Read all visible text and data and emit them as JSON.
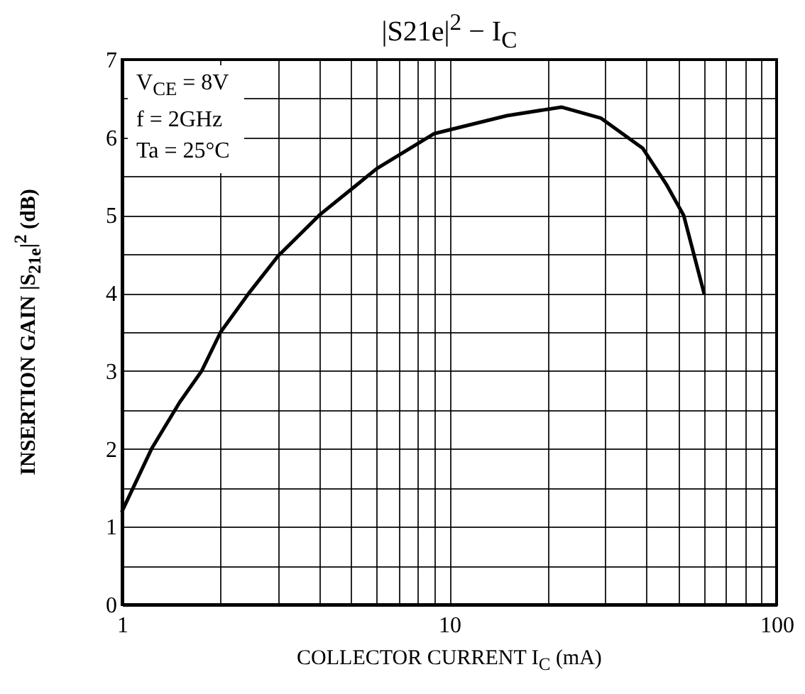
{
  "chart_data": {
    "type": "line",
    "title": "|S21e|$^{2}$ − I$_{C}$",
    "xlabel": "COLLECTOR CURRENT I$_{C}$ (mA)",
    "ylabel": "INSERTION GAIN |S$_{21e}$|$^{2}$ (dB)",
    "annotations": [
      "V$_{CE}$ = 8V",
      "f = 2GHz",
      "Ta = 25°C"
    ],
    "x": [
      1,
      1.23,
      1.5,
      1.75,
      2,
      2.44,
      3,
      4,
      5,
      6,
      9,
      12,
      15,
      22,
      29,
      39,
      46,
      52,
      60
    ],
    "series": [
      {
        "color": "#000000",
        "values": [
          1.2,
          2.0,
          2.6,
          3.0,
          3.5,
          4.0,
          4.48,
          5.0,
          5.33,
          5.6,
          6.05,
          6.18,
          6.28,
          6.39,
          6.25,
          5.86,
          5.4,
          5.0,
          4.0
        ]
      }
    ],
    "log": "x",
    "xlim": [
      1,
      100
    ],
    "ylim": [
      0,
      7
    ],
    "xticks": [
      1,
      {
        "value": 2,
        "label": null
      },
      {
        "value": 3,
        "label": null
      },
      {
        "value": 4,
        "label": null
      },
      {
        "value": 5,
        "label": null
      },
      {
        "value": 6,
        "label": null
      },
      {
        "value": 7,
        "label": null
      },
      {
        "value": 8,
        "label": null
      },
      {
        "value": 9,
        "label": null
      },
      10,
      {
        "value": 20,
        "label": null
      },
      {
        "value": 30,
        "label": null
      },
      {
        "value": 40,
        "label": null
      },
      {
        "value": 50,
        "label": null
      },
      {
        "value": 60,
        "label": null
      },
      {
        "value": 70,
        "label": null
      },
      {
        "value": 80,
        "label": null
      },
      {
        "value": 90,
        "label": null
      },
      100
    ],
    "yticks": [
      0,
      {
        "value": 0.5,
        "label": null
      },
      1,
      {
        "value": 1.5,
        "label": null
      },
      2,
      {
        "value": 2.5,
        "label": null
      },
      3,
      {
        "value": 3.5,
        "label": null
      },
      4,
      {
        "value": 4.5,
        "label": null
      },
      5,
      {
        "value": 5.5,
        "label": null
      },
      6,
      {
        "value": 6.5,
        "label": null
      },
      7
    ],
    "grid": true
  }
}
